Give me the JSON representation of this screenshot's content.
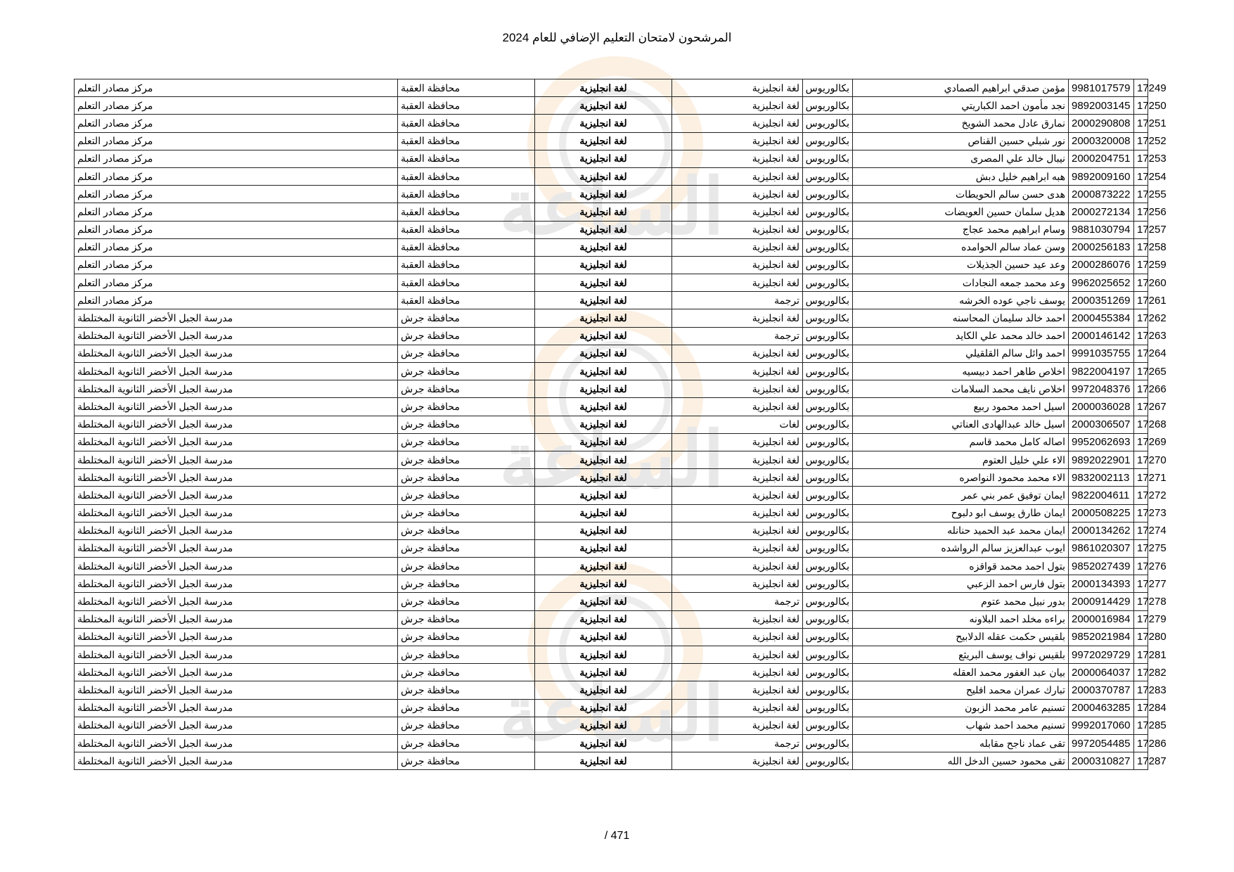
{
  "title": "المرشحون لامتحان التعليم الإضافي للعام 2024",
  "page_number": "471 /",
  "watermark_text": "الساعة",
  "rows": [
    {
      "seq": "17249",
      "id": "9981017579",
      "name": "مؤمن صدقي ابراهيم الصمادي",
      "degree": "بكالوريوس",
      "spec": "لغة انجليزية",
      "subject": "لغة انجليزية",
      "gov": "محافظة العقبة",
      "center": "مركز مصادر التعلم"
    },
    {
      "seq": "17250",
      "id": "9892003145",
      "name": "نجد مأمون احمد الكباريتي",
      "degree": "بكالوريوس",
      "spec": "لغة انجليزية",
      "subject": "لغة انجليزية",
      "gov": "محافظة العقبة",
      "center": "مركز مصادر التعلم"
    },
    {
      "seq": "17251",
      "id": "2000290808",
      "name": "نمارق عادل محمد الشويخ",
      "degree": "بكالوريوس",
      "spec": "لغة انجليزية",
      "subject": "لغة انجليزية",
      "gov": "محافظة العقبة",
      "center": "مركز مصادر التعلم"
    },
    {
      "seq": "17252",
      "id": "2000320008",
      "name": "نور شبلي حسين القناص",
      "degree": "بكالوريوس",
      "spec": "لغة انجليزية",
      "subject": "لغة انجليزية",
      "gov": "محافظة العقبة",
      "center": "مركز مصادر التعلم"
    },
    {
      "seq": "17253",
      "id": "2000204751",
      "name": "نيبال خالد علي المصرى",
      "degree": "بكالوريوس",
      "spec": "لغة انجليزية",
      "subject": "لغة انجليزية",
      "gov": "محافظة العقبة",
      "center": "مركز مصادر التعلم"
    },
    {
      "seq": "17254",
      "id": "9892009160",
      "name": "هبه ابراهيم خليل دبش",
      "degree": "بكالوريوس",
      "spec": "لغة انجليزية",
      "subject": "لغة انجليزية",
      "gov": "محافظة العقبة",
      "center": "مركز مصادر التعلم"
    },
    {
      "seq": "17255",
      "id": "2000873222",
      "name": "هدى حسن سالم الحويطات",
      "degree": "بكالوريوس",
      "spec": "لغة انجليزية",
      "subject": "لغة انجليزية",
      "gov": "محافظة العقبة",
      "center": "مركز مصادر التعلم"
    },
    {
      "seq": "17256",
      "id": "2000272134",
      "name": "هديل سلمان حسين العويضات",
      "degree": "بكالوريوس",
      "spec": "لغة انجليزية",
      "subject": "لغة انجليزية",
      "gov": "محافظة العقبة",
      "center": "مركز مصادر التعلم"
    },
    {
      "seq": "17257",
      "id": "9881030794",
      "name": "وسام ابراهيم محمد عجاج",
      "degree": "بكالوريوس",
      "spec": "لغة انجليزية",
      "subject": "لغة انجليزية",
      "gov": "محافظة العقبة",
      "center": "مركز مصادر التعلم"
    },
    {
      "seq": "17258",
      "id": "2000256183",
      "name": "وسن عماد سالم الحوامده",
      "degree": "بكالوريوس",
      "spec": "لغة انجليزية",
      "subject": "لغة انجليزية",
      "gov": "محافظة العقبة",
      "center": "مركز مصادر التعلم"
    },
    {
      "seq": "17259",
      "id": "2000286076",
      "name": "وعد عيد حسين الجذيلات",
      "degree": "بكالوريوس",
      "spec": "لغة انجليزية",
      "subject": "لغة انجليزية",
      "gov": "محافظة العقبة",
      "center": "مركز مصادر التعلم"
    },
    {
      "seq": "17260",
      "id": "9962025652",
      "name": "وعد محمد جمعه النجادات",
      "degree": "بكالوريوس",
      "spec": "لغة انجليزية",
      "subject": "لغة انجليزية",
      "gov": "محافظة العقبة",
      "center": "مركز مصادر التعلم"
    },
    {
      "seq": "17261",
      "id": "2000351269",
      "name": "يوسف ناجي عوده الخرشه",
      "degree": "بكالوريوس",
      "spec": "ترجمة",
      "subject": "لغة انجليزية",
      "gov": "محافظة العقبة",
      "center": "مركز مصادر التعلم"
    },
    {
      "seq": "17262",
      "id": "2000455384",
      "name": "احمد خالد سليمان المحاسنه",
      "degree": "بكالوريوس",
      "spec": "لغة انجليزية",
      "subject": "لغة انجليزية",
      "gov": "محافظة جرش",
      "center": "مدرسة الجبل الأخضر الثانوية المختلطة"
    },
    {
      "seq": "17263",
      "id": "2000146142",
      "name": "احمد خالد محمد علي الكايد",
      "degree": "بكالوريوس",
      "spec": "ترجمة",
      "subject": "لغة انجليزية",
      "gov": "محافظة جرش",
      "center": "مدرسة الجبل الأخضر الثانوية المختلطة"
    },
    {
      "seq": "17264",
      "id": "9991035755",
      "name": "احمد وائل سالم القلقيلي",
      "degree": "بكالوريوس",
      "spec": "لغة انجليزية",
      "subject": "لغة انجليزية",
      "gov": "محافظة جرش",
      "center": "مدرسة الجبل الأخضر الثانوية المختلطة"
    },
    {
      "seq": "17265",
      "id": "9822004197",
      "name": "اخلاص طاهر احمد دبيسيه",
      "degree": "بكالوريوس",
      "spec": "لغة انجليزية",
      "subject": "لغة انجليزية",
      "gov": "محافظة جرش",
      "center": "مدرسة الجبل الأخضر الثانوية المختلطة"
    },
    {
      "seq": "17266",
      "id": "9972048376",
      "name": "اخلاص نايف محمد السلامات",
      "degree": "بكالوريوس",
      "spec": "لغة انجليزية",
      "subject": "لغة انجليزية",
      "gov": "محافظة جرش",
      "center": "مدرسة الجبل الأخضر الثانوية المختلطة"
    },
    {
      "seq": "17267",
      "id": "2000036028",
      "name": "اسيل احمد محمود ربيع",
      "degree": "بكالوريوس",
      "spec": "لغة انجليزية",
      "subject": "لغة انجليزية",
      "gov": "محافظة جرش",
      "center": "مدرسة الجبل الأخضر الثانوية المختلطة"
    },
    {
      "seq": "17268",
      "id": "2000306507",
      "name": "اسيل خالد عبدالهادى العناتي",
      "degree": "بكالوريوس",
      "spec": "لغات",
      "subject": "لغة انجليزية",
      "gov": "محافظة جرش",
      "center": "مدرسة الجبل الأخضر الثانوية المختلطة"
    },
    {
      "seq": "17269",
      "id": "9952062693",
      "name": "اصاله كامل محمد قاسم",
      "degree": "بكالوريوس",
      "spec": "لغة انجليزية",
      "subject": "لغة انجليزية",
      "gov": "محافظة جرش",
      "center": "مدرسة الجبل الأخضر الثانوية المختلطة"
    },
    {
      "seq": "17270",
      "id": "9892022901",
      "name": "الاء علي خليل العتوم",
      "degree": "بكالوريوس",
      "spec": "لغة انجليزية",
      "subject": "لغة انجليزية",
      "gov": "محافظة جرش",
      "center": "مدرسة الجبل الأخضر الثانوية المختلطة"
    },
    {
      "seq": "17271",
      "id": "9832002113",
      "name": "الاء محمد محمود النواصره",
      "degree": "بكالوريوس",
      "spec": "لغة انجليزية",
      "subject": "لغة انجليزية",
      "gov": "محافظة جرش",
      "center": "مدرسة الجبل الأخضر الثانوية المختلطة"
    },
    {
      "seq": "17272",
      "id": "9822004611",
      "name": "ايمان توفيق عمر بني عمر",
      "degree": "بكالوريوس",
      "spec": "لغة انجليزية",
      "subject": "لغة انجليزية",
      "gov": "محافظة جرش",
      "center": "مدرسة الجبل الأخضر الثانوية المختلطة"
    },
    {
      "seq": "17273",
      "id": "2000508225",
      "name": "ايمان طارق يوسف ابو دلبوح",
      "degree": "بكالوريوس",
      "spec": "لغة انجليزية",
      "subject": "لغة انجليزية",
      "gov": "محافظة جرش",
      "center": "مدرسة الجبل الأخضر الثانوية المختلطة"
    },
    {
      "seq": "17274",
      "id": "2000134262",
      "name": "ايمان محمد عبد الحميد حنانله",
      "degree": "بكالوريوس",
      "spec": "لغة انجليزية",
      "subject": "لغة انجليزية",
      "gov": "محافظة جرش",
      "center": "مدرسة الجبل الأخضر الثانوية المختلطة"
    },
    {
      "seq": "17275",
      "id": "9861020307",
      "name": "ايوب عبدالعزيز سالم الرواشده",
      "degree": "بكالوريوس",
      "spec": "لغة انجليزية",
      "subject": "لغة انجليزية",
      "gov": "محافظة جرش",
      "center": "مدرسة الجبل الأخضر الثانوية المختلطة"
    },
    {
      "seq": "17276",
      "id": "9852027439",
      "name": "بتول احمد محمد قواقزه",
      "degree": "بكالوريوس",
      "spec": "لغة انجليزية",
      "subject": "لغة انجليزية",
      "gov": "محافظة جرش",
      "center": "مدرسة الجبل الأخضر الثانوية المختلطة"
    },
    {
      "seq": "17277",
      "id": "2000134393",
      "name": "بتول فارس احمد الزعبي",
      "degree": "بكالوريوس",
      "spec": "لغة انجليزية",
      "subject": "لغة انجليزية",
      "gov": "محافظة جرش",
      "center": "مدرسة الجبل الأخضر الثانوية المختلطة"
    },
    {
      "seq": "17278",
      "id": "2000914429",
      "name": "بدور نبيل محمد عتوم",
      "degree": "بكالوريوس",
      "spec": "ترجمة",
      "subject": "لغة انجليزية",
      "gov": "محافظة جرش",
      "center": "مدرسة الجبل الأخضر الثانوية المختلطة"
    },
    {
      "seq": "17279",
      "id": "2000016984",
      "name": "براءه مخلد احمد البلاونه",
      "degree": "بكالوريوس",
      "spec": "لغة انجليزية",
      "subject": "لغة انجليزية",
      "gov": "محافظة جرش",
      "center": "مدرسة الجبل الأخضر الثانوية المختلطة"
    },
    {
      "seq": "17280",
      "id": "9852021984",
      "name": "بلقيس حكمت عقله الدلابيح",
      "degree": "بكالوريوس",
      "spec": "لغة انجليزية",
      "subject": "لغة انجليزية",
      "gov": "محافظة جرش",
      "center": "مدرسة الجبل الأخضر الثانوية المختلطة"
    },
    {
      "seq": "17281",
      "id": "9972029729",
      "name": "بلقيس نواف يوسف البريثع",
      "degree": "بكالوريوس",
      "spec": "لغة انجليزية",
      "subject": "لغة انجليزية",
      "gov": "محافظة جرش",
      "center": "مدرسة الجبل الأخضر الثانوية المختلطة"
    },
    {
      "seq": "17282",
      "id": "2000064037",
      "name": "بيان عبد الغفور محمد العقله",
      "degree": "بكالوريوس",
      "spec": "لغة انجليزية",
      "subject": "لغة انجليزية",
      "gov": "محافظة جرش",
      "center": "مدرسة الجبل الأخضر الثانوية المختلطة"
    },
    {
      "seq": "17283",
      "id": "2000370787",
      "name": "تبارك عمران محمد افليح",
      "degree": "بكالوريوس",
      "spec": "لغة انجليزية",
      "subject": "لغة انجليزية",
      "gov": "محافظة جرش",
      "center": "مدرسة الجبل الأخضر الثانوية المختلطة"
    },
    {
      "seq": "17284",
      "id": "2000463285",
      "name": "تسنيم عامر محمد الزبون",
      "degree": "بكالوريوس",
      "spec": "لغة انجليزية",
      "subject": "لغة انجليزية",
      "gov": "محافظة جرش",
      "center": "مدرسة الجبل الأخضر الثانوية المختلطة"
    },
    {
      "seq": "17285",
      "id": "9992017060",
      "name": "تسنيم محمد احمد شهاب",
      "degree": "بكالوريوس",
      "spec": "لغة انجليزية",
      "subject": "لغة انجليزية",
      "gov": "محافظة جرش",
      "center": "مدرسة الجبل الأخضر الثانوية المختلطة"
    },
    {
      "seq": "17286",
      "id": "9972054485",
      "name": "تقى عماد ناجح مقابله",
      "degree": "بكالوريوس",
      "spec": "ترجمة",
      "subject": "لغة انجليزية",
      "gov": "محافظة جرش",
      "center": "مدرسة الجبل الأخضر الثانوية المختلطة"
    },
    {
      "seq": "17287",
      "id": "2000310827",
      "name": "تقى محمود حسين الدخل الله",
      "degree": "بكالوريوس",
      "spec": "لغة انجليزية",
      "subject": "لغة انجليزية",
      "gov": "محافظة جرش",
      "center": "مدرسة الجبل الأخضر الثانوية المختلطة"
    }
  ]
}
